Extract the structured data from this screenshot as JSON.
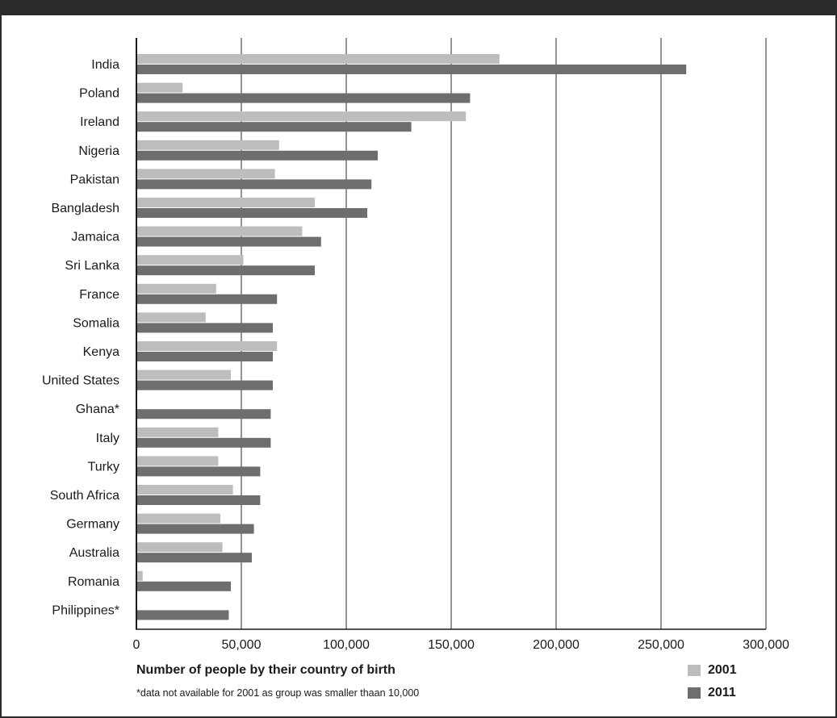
{
  "chart_data": {
    "type": "bar",
    "orientation": "horizontal",
    "categories": [
      "India",
      "Poland",
      "Ireland",
      "Nigeria",
      "Pakistan",
      "Bangladesh",
      "Jamaica",
      "Sri Lanka",
      "France",
      "Somalia",
      "Kenya",
      "United States",
      "Ghana*",
      "Italy",
      "Turky",
      "South Africa",
      "Germany",
      "Australia",
      "Romania",
      "Philippines*"
    ],
    "series": [
      {
        "name": "2001",
        "color": "#bdbdbf",
        "values": [
          173000,
          22000,
          157000,
          68000,
          66000,
          85000,
          79000,
          51000,
          38000,
          33000,
          67000,
          45000,
          null,
          39000,
          39000,
          46000,
          40000,
          41000,
          3000,
          null
        ]
      },
      {
        "name": "2011",
        "color": "#6e6e70",
        "values": [
          262000,
          159000,
          131000,
          115000,
          112000,
          110000,
          88000,
          85000,
          67000,
          65000,
          65000,
          65000,
          64000,
          64000,
          59000,
          59000,
          56000,
          55000,
          45000,
          44000
        ]
      }
    ],
    "xlim": [
      0,
      300000
    ],
    "xticks": [
      "0",
      "50,000",
      "100,000",
      "150,000",
      "200,000",
      "250,000",
      "300,000"
    ],
    "grid": true,
    "xlabel": "Number of people by their country of birth",
    "footnote": "*data not available for 2001 as group was smaller thaan 10,000",
    "legend_position": "bottom-right"
  }
}
